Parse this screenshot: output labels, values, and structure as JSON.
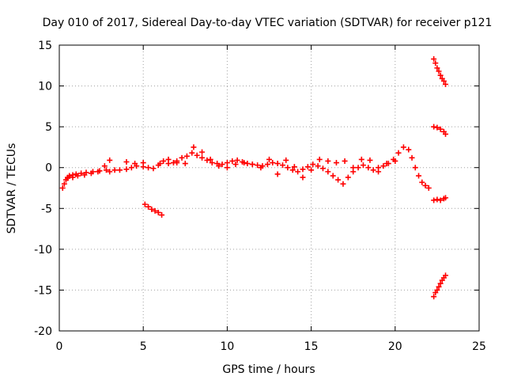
{
  "chart_data": {
    "type": "scatter",
    "title": "Day 010 of 2017, Sidereal Day-to-day VTEC variation (SDTVAR) for receiver p121",
    "xlabel": "GPS time / hours",
    "ylabel": "SDTVAR / TECUs",
    "xlim": [
      0,
      25
    ],
    "ylim": [
      -20,
      15
    ],
    "xticks": [
      0,
      5,
      10,
      15,
      20,
      25
    ],
    "yticks": [
      -20,
      -15,
      -10,
      -5,
      0,
      5,
      10,
      15
    ],
    "grid": true,
    "marker": "plus",
    "color": "#ff0000",
    "series": [
      {
        "x": [
          0.2,
          0.3,
          0.4,
          0.5,
          0.6,
          0.8,
          1.0,
          1.3,
          1.6,
          2.0,
          2.4,
          2.8,
          3.0,
          3.3,
          3.6,
          4.0,
          4.3,
          4.6,
          5.0,
          5.3,
          5.6,
          5.9,
          6.2,
          6.5,
          6.8,
          7.0,
          7.3,
          7.6,
          7.9,
          8.2,
          8.5,
          8.8,
          9.1,
          9.4,
          9.7,
          10.0,
          10.3,
          10.6,
          10.9,
          11.2,
          11.5,
          11.8,
          12.1,
          12.4,
          12.7,
          13.0,
          13.3,
          13.6,
          13.9,
          14.2,
          14.5,
          14.8,
          15.1,
          15.4,
          15.7,
          16.0,
          16.3,
          16.6,
          16.9,
          17.2,
          17.5,
          17.8,
          18.1,
          18.4,
          18.7,
          19.0,
          19.3,
          19.6,
          19.9,
          20.2,
          20.5,
          20.8,
          21.0,
          21.2,
          21.4,
          21.6,
          21.8,
          22.0
        ],
        "y": [
          -2.5,
          -2.0,
          -1.5,
          -1.2,
          -1.0,
          -0.9,
          -0.8,
          -0.7,
          -0.6,
          -0.5,
          -0.4,
          -0.3,
          -0.5,
          -0.3,
          -0.3,
          -0.2,
          0.0,
          0.2,
          0.1,
          0.0,
          -0.1,
          0.3,
          0.8,
          0.5,
          0.6,
          0.8,
          1.2,
          1.4,
          1.8,
          1.5,
          1.2,
          0.9,
          0.6,
          0.5,
          0.4,
          0.6,
          0.8,
          0.9,
          0.7,
          0.5,
          0.4,
          0.3,
          0.2,
          0.4,
          0.6,
          0.5,
          0.3,
          0.0,
          -0.3,
          -0.5,
          -0.2,
          0.1,
          0.4,
          0.2,
          -0.1,
          -0.5,
          -1.0,
          -1.5,
          -2.0,
          -1.2,
          -0.5,
          0.0,
          0.3,
          0.0,
          -0.3,
          0.0,
          0.2,
          0.5,
          1.0,
          1.8,
          2.5,
          2.2,
          1.2,
          0.0,
          -1.0,
          -1.8,
          -2.2,
          -2.5
        ]
      },
      {
        "x": [
          0.5,
          0.8,
          1.1,
          1.5,
          1.9,
          2.3,
          2.7,
          3.0,
          4.0,
          4.5,
          5.0,
          6.0,
          6.5,
          7.0,
          7.5,
          8.0,
          8.5,
          9.0,
          9.5,
          10.0,
          10.5,
          11.0,
          11.5,
          12.0,
          12.5,
          13.0,
          13.5,
          14.0,
          14.5,
          15.0,
          15.5,
          16.0,
          16.5,
          17.0,
          17.5,
          18.0,
          18.5,
          19.0,
          19.5,
          20.0
        ],
        "y": [
          -1.3,
          -1.2,
          -1.0,
          -0.9,
          -0.7,
          -0.5,
          0.2,
          0.9,
          0.7,
          0.5,
          0.6,
          0.5,
          1.0,
          0.6,
          0.5,
          2.5,
          1.9,
          1.0,
          0.2,
          0.0,
          0.4,
          0.6,
          0.4,
          0.0,
          1.0,
          -0.8,
          0.9,
          0.1,
          -1.2,
          -0.3,
          1.0,
          0.8,
          0.6,
          0.8,
          0.0,
          1.0,
          0.9,
          -0.5,
          0.5,
          0.8
        ]
      },
      {
        "x": [
          5.1,
          5.3,
          5.5,
          5.7,
          5.9,
          6.1
        ],
        "y": [
          -4.5,
          -4.8,
          -5.1,
          -5.3,
          -5.5,
          -5.8
        ]
      },
      {
        "x": [
          22.3,
          22.4,
          22.5,
          22.6,
          22.7,
          22.8,
          22.9,
          23.0
        ],
        "y": [
          13.3,
          12.8,
          12.2,
          11.8,
          11.3,
          10.9,
          10.6,
          10.2
        ]
      },
      {
        "x": [
          22.3,
          22.5,
          22.7,
          22.9,
          23.0
        ],
        "y": [
          5.0,
          4.9,
          4.7,
          4.4,
          4.1
        ]
      },
      {
        "x": [
          22.3,
          22.5,
          22.7,
          22.9,
          23.0
        ],
        "y": [
          -4.0,
          -3.9,
          -4.0,
          -3.8,
          -3.7
        ]
      },
      {
        "x": [
          22.3,
          22.4,
          22.5,
          22.6,
          22.7,
          22.8,
          22.9,
          23.0
        ],
        "y": [
          -15.8,
          -15.3,
          -15.0,
          -14.6,
          -14.2,
          -13.8,
          -13.5,
          -13.2
        ]
      }
    ]
  }
}
